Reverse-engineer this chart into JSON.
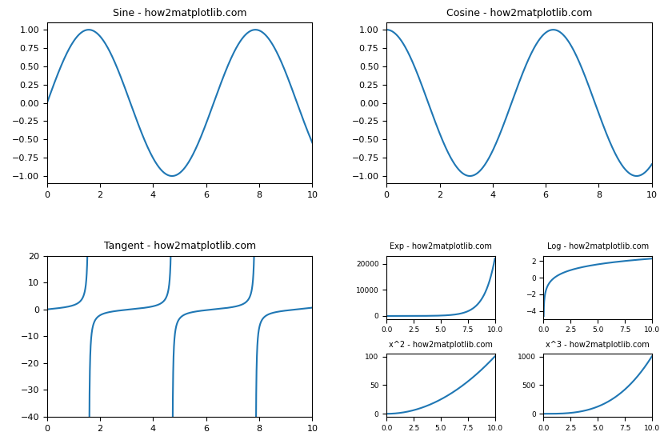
{
  "title_sine": "Sine - how2matplotlib.com",
  "title_cosine": "Cosine - how2matplotlib.com",
  "title_tangent": "Tangent - how2matplotlib.com",
  "title_exp": "Exp - how2matplotlib.com",
  "title_log": "Log - how2matplotlib.com",
  "title_x2": "x^2 - how2matplotlib.com",
  "title_x3": "x^3 - how2matplotlib.com",
  "line_color": "#1f77b4",
  "background_color": "#ffffff",
  "figsize": [
    8.4,
    5.6
  ],
  "dpi": 100,
  "title_fontsize_large": 9,
  "title_fontsize_small": 7,
  "tick_labelsize_large": 8,
  "tick_labelsize_small": 6.5
}
